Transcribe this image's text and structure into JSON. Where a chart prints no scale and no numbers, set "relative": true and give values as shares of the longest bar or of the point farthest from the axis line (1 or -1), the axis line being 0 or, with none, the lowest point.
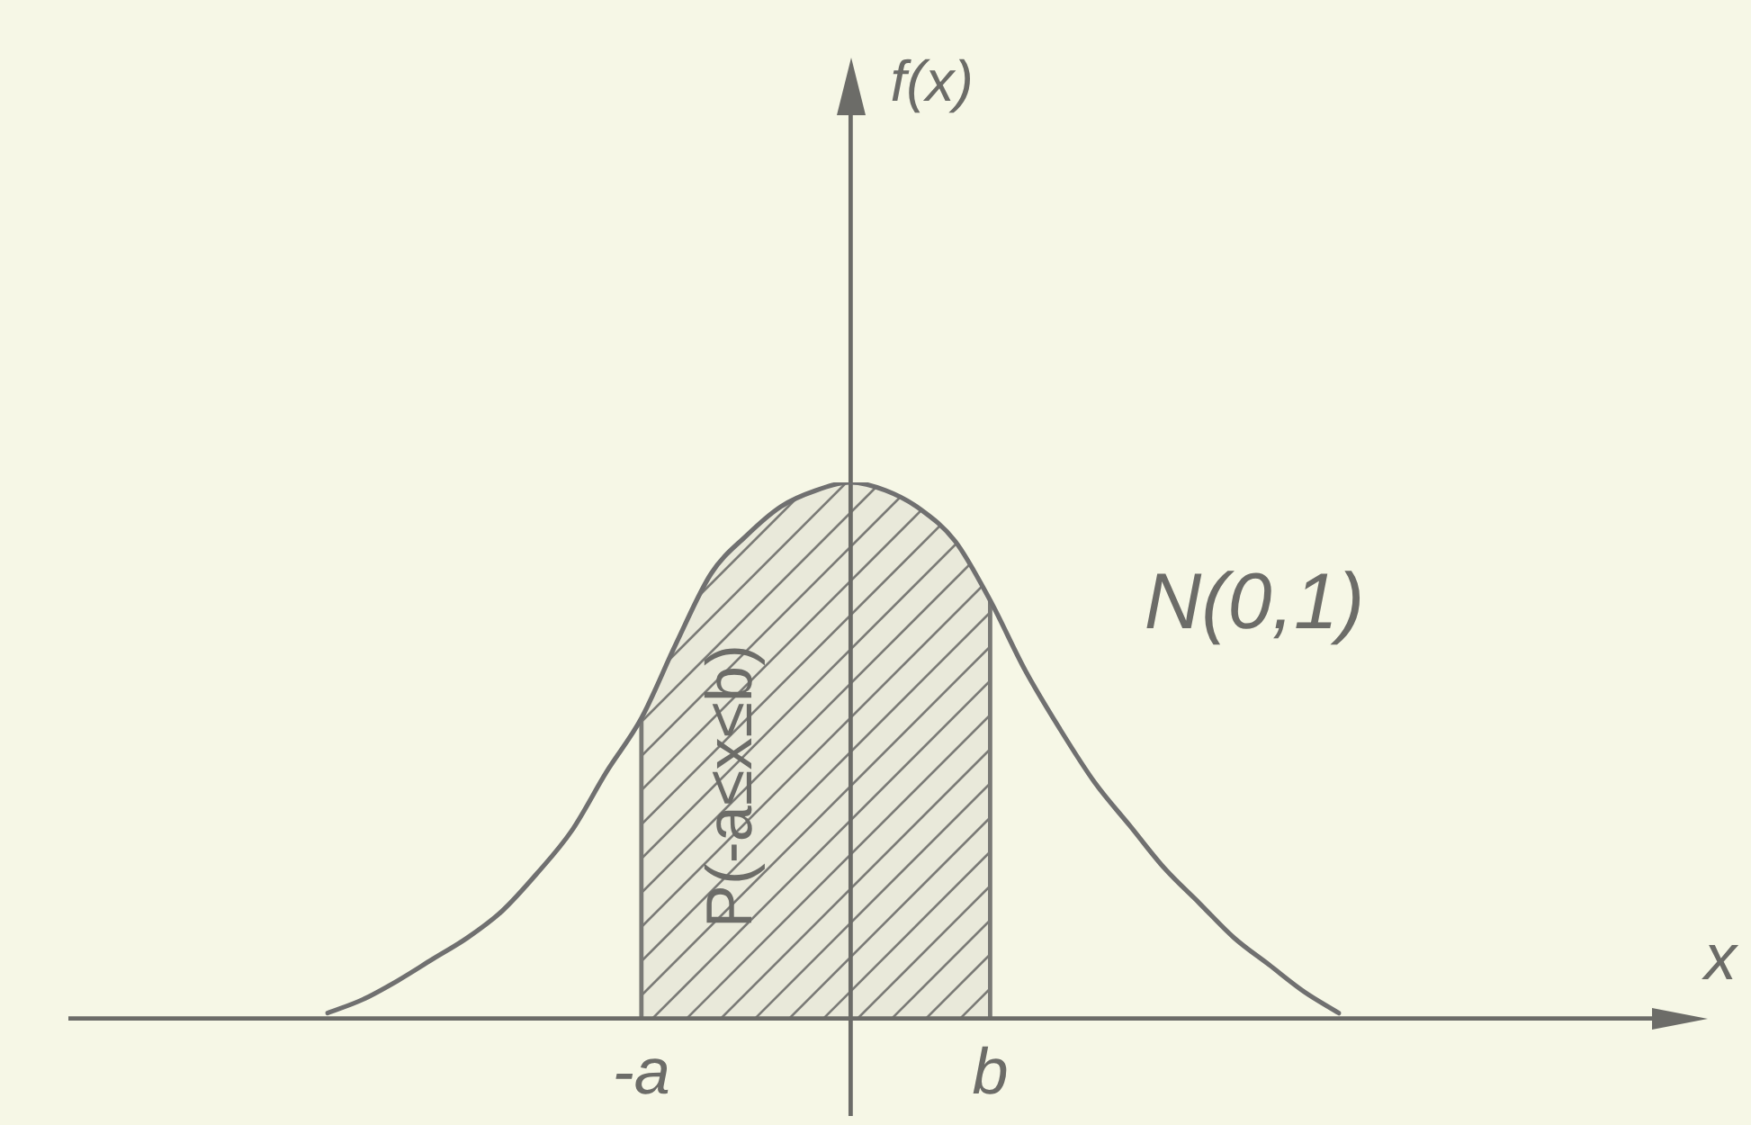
{
  "chart_data": {
    "type": "line",
    "relative": true,
    "categories": [
      null,
      null,
      null,
      null,
      null,
      null,
      null,
      null,
      null,
      "-a",
      null,
      null,
      null,
      null,
      null,
      null,
      null,
      null,
      null,
      "b",
      null,
      null,
      null,
      null,
      null,
      null,
      null,
      null,
      null,
      null
    ],
    "series": [
      {
        "color": "#707070",
        "values": [
          0.01,
          0.035,
          0.07,
          0.11,
          0.15,
          0.2,
          0.27,
          0.35,
          0.46,
          0.56,
          0.7,
          0.83,
          0.9,
          0.955,
          0.985,
          1,
          0.985,
          0.95,
          0.89,
          0.78,
          0.65,
          0.54,
          0.44,
          0.36,
          0.28,
          0.215,
          0.15,
          0.1,
          0.05,
          0.01
        ]
      }
    ],
    "bands": [
      {
        "axis": "x",
        "from": "-a",
        "to": "b",
        "label": "P(-a≤x≤b)",
        "color": "#7a7a76"
      }
    ],
    "annotations": [
      "f(x)",
      "N(0,1)",
      "x"
    ]
  }
}
